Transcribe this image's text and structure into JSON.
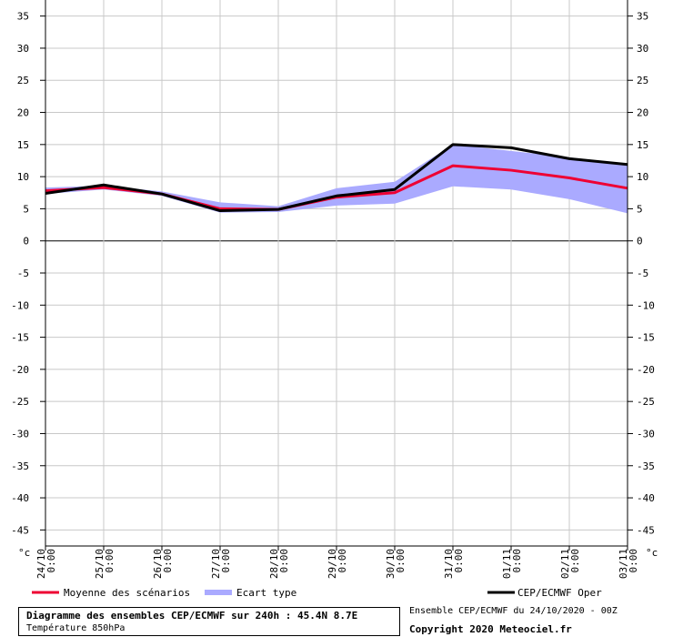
{
  "chart_data": {
    "type": "line",
    "x": [
      "24/10 0:00",
      "25/10 0:00",
      "26/10 0:00",
      "27/10 0:00",
      "28/10 0:00",
      "29/10 0:00",
      "30/10 0:00",
      "31/10 0:00",
      "01/11 0:00",
      "02/11 0:00",
      "03/11 0:00"
    ],
    "x_labels": [
      [
        "24/10",
        "0:00"
      ],
      [
        "25/10",
        "0:00"
      ],
      [
        "26/10",
        "0:00"
      ],
      [
        "27/10",
        "0:00"
      ],
      [
        "28/10",
        "0:00"
      ],
      [
        "29/10",
        "0:00"
      ],
      [
        "30/10",
        "0:00"
      ],
      [
        "31/10",
        "0:00"
      ],
      [
        "01/11",
        "0:00"
      ],
      [
        "02/11",
        "0:00"
      ],
      [
        "03/11",
        "0:00"
      ]
    ],
    "ylim": [
      -47.5,
      37.5
    ],
    "yticks": [
      35,
      30,
      25,
      20,
      15,
      10,
      5,
      0,
      -5,
      -10,
      -15,
      -20,
      -25,
      -30,
      -35,
      -40,
      -45
    ],
    "unit": "°c",
    "grid": true,
    "series": [
      {
        "name": "Moyenne des scénarios",
        "color": "#ee0033",
        "values": [
          7.8,
          8.3,
          7.3,
          5.0,
          4.9,
          6.8,
          7.5,
          11.7,
          11.0,
          9.8,
          8.2
        ]
      },
      {
        "name": "CEP/ECMWF Oper",
        "color": "#000000",
        "values": [
          7.4,
          8.7,
          7.3,
          4.7,
          4.9,
          7.0,
          8.0,
          15.0,
          14.5,
          12.8,
          11.9
        ]
      }
    ],
    "band": {
      "name": "Ecart type",
      "color": "#aaaaff",
      "lower": [
        7.3,
        8.0,
        7.0,
        4.4,
        4.5,
        5.5,
        5.8,
        8.5,
        8.0,
        6.5,
        4.3
      ],
      "upper": [
        8.3,
        8.6,
        7.7,
        6.0,
        5.4,
        8.2,
        9.2,
        15.0,
        14.0,
        13.0,
        12.0
      ]
    }
  },
  "legend": {
    "mean_label": "Moyenne des scénarios",
    "spread_label": "Ecart type",
    "oper_label": "CEP/ECMWF Oper"
  },
  "info": {
    "title": "Diagramme des ensembles CEP/ECMWF sur 240h : 45.4N 8.7E",
    "subtitle": "Température 850hPa"
  },
  "footer": {
    "run": "Ensemble CEP/ECMWF du 24/10/2020 - 00Z",
    "copyright": "Copyright 2020 Meteociel.fr"
  }
}
